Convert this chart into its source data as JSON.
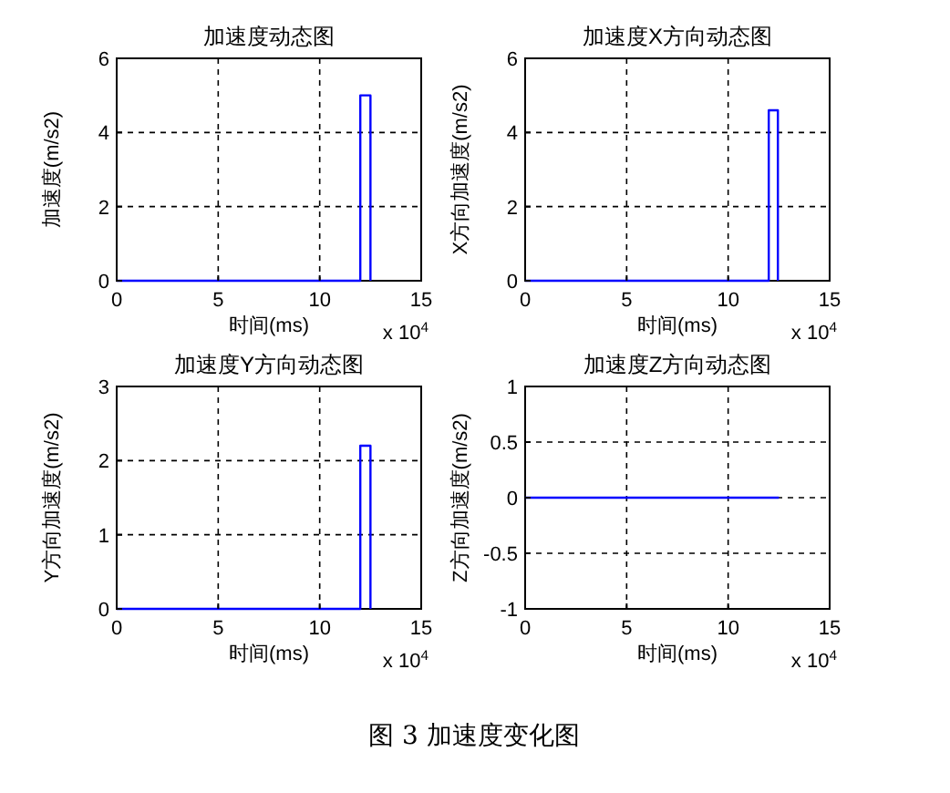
{
  "chart_data": [
    {
      "type": "line",
      "title": "加速度动态图",
      "xlabel": "时间(ms)",
      "ylabel": "加速度(m/s2)",
      "x": [
        0,
        12,
        12,
        12.5,
        12.5
      ],
      "series": [
        {
          "color": "#0000ff",
          "values": [
            0,
            0,
            5,
            5,
            0
          ]
        }
      ],
      "xlim": [
        0,
        15
      ],
      "xticks": [
        0,
        5,
        10,
        15
      ],
      "ylim": [
        0,
        6
      ],
      "yticks": [
        0,
        2,
        4,
        6
      ],
      "grid": true,
      "line_style": "solid",
      "annotations": [
        "x 10$^{4}$"
      ]
    },
    {
      "type": "line",
      "title": "加速度X方向动态图",
      "xlabel": "时间(ms)",
      "ylabel": "X方向加速度(m/s2)",
      "x": [
        0,
        12,
        12,
        12.45,
        12.45
      ],
      "series": [
        {
          "color": "#0000ff",
          "values": [
            0,
            0,
            4.6,
            4.6,
            0
          ]
        }
      ],
      "xlim": [
        0,
        15
      ],
      "xticks": [
        0,
        5,
        10,
        15
      ],
      "ylim": [
        0,
        6
      ],
      "yticks": [
        0,
        2,
        4,
        6
      ],
      "grid": true,
      "line_style": "solid",
      "annotations": [
        "x 10$^{4}$"
      ]
    },
    {
      "type": "line",
      "title": "加速度Y方向动态图",
      "xlabel": "时间(ms)",
      "ylabel": "Y方向加速度(m/s2)",
      "x": [
        0,
        12,
        12,
        12.5,
        12.5
      ],
      "series": [
        {
          "color": "#0000ff",
          "values": [
            0,
            0,
            2.2,
            2.2,
            0
          ]
        }
      ],
      "xlim": [
        0,
        15
      ],
      "xticks": [
        0,
        5,
        10,
        15
      ],
      "ylim": [
        0,
        3
      ],
      "yticks": [
        0,
        1,
        2,
        3
      ],
      "grid": true,
      "line_style": "solid",
      "annotations": [
        "x 10$^{4}$"
      ]
    },
    {
      "type": "line",
      "title": "加速度Z方向动态图",
      "xlabel": "时间(ms)",
      "ylabel": "Z方向加速度(m/s2)",
      "x": [
        0,
        12.5
      ],
      "series": [
        {
          "color": "#0000ff",
          "values": [
            0,
            0
          ]
        }
      ],
      "xlim": [
        0,
        15
      ],
      "xticks": [
        0,
        5,
        10,
        15
      ],
      "ylim": [
        -1,
        1
      ],
      "yticks": [
        -1,
        -0.5,
        0,
        0.5,
        1
      ],
      "grid": true,
      "line_style": "solid",
      "annotations": [
        "x 10$^{4}$",
        "图 3  加速度变化图"
      ]
    }
  ]
}
